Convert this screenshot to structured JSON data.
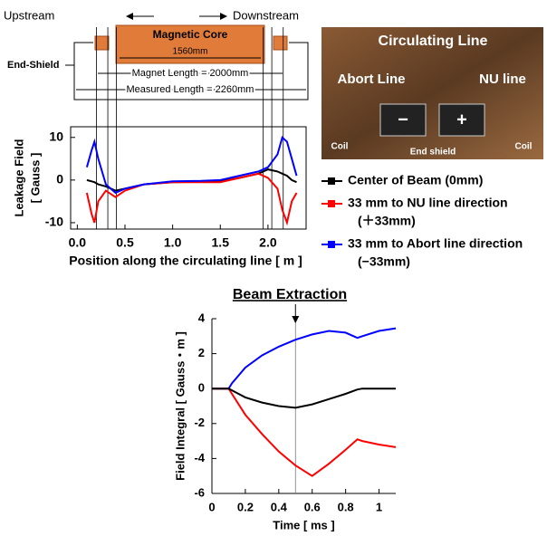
{
  "diagram": {
    "upstream": "Upstream",
    "downstream": "Downstream",
    "core": "Magnetic Core",
    "core_length": "1560mm",
    "end_shield": "End-Shield",
    "magnet_length": "Magnet Length = 2000mm",
    "measured_length": "Measured Length = 2260mm"
  },
  "photo": {
    "circulating": "Circulating Line",
    "abort": "Abort Line",
    "nu": "NU line",
    "coil_left": "Coil",
    "coil_right": "Coil",
    "end_shield": "End shield",
    "minus": "−",
    "plus": "+"
  },
  "chart_data": [
    {
      "type": "line",
      "xlabel": "Position along the circulating line  [ m ]",
      "ylabel": [
        "Leakage Field",
        "[ Gauss ]"
      ],
      "x": [
        0.1,
        0.15,
        0.18,
        0.22,
        0.3,
        0.4,
        0.5,
        0.7,
        1.0,
        1.3,
        1.5,
        1.7,
        1.9,
        2.0,
        2.1,
        2.15,
        2.2,
        2.25,
        2.3
      ],
      "series": [
        {
          "name": [
            "Center of Beam (0mm)"
          ],
          "color": "#000000",
          "values": [
            0,
            -0.3,
            -0.5,
            -1,
            -1.5,
            -2.5,
            -2,
            -1,
            -0.5,
            -0.4,
            -0.3,
            0.5,
            1.5,
            2.5,
            2,
            1.5,
            1,
            0,
            -0.5
          ]
        },
        {
          "name": [
            "33 mm to NU line direction",
            "(＋33mm)"
          ],
          "color": "#ff0000",
          "values": [
            -3,
            -8,
            -10,
            -5,
            -2.5,
            -4,
            -2.5,
            -1,
            -0.5,
            -0.5,
            -0.5,
            0.5,
            1.5,
            0.5,
            -2,
            -7,
            -10,
            -5,
            -3
          ]
        },
        {
          "name": [
            "33 mm to Abort line direction",
            "(−33mm)"
          ],
          "color": "#0000ff",
          "values": [
            3,
            7,
            9,
            5,
            -1,
            -3,
            -2,
            -1,
            -0.3,
            -0.2,
            0,
            1,
            2,
            3,
            6,
            10,
            9,
            5,
            1
          ]
        }
      ],
      "vlines": [
        0.2,
        0.32,
        0.41,
        1.95,
        2.04,
        2.16
      ],
      "xlim": [
        -0.07,
        2.4
      ],
      "xticks": [
        {
          "value": 0,
          "label": "0.0"
        },
        0.5,
        {
          "value": 1,
          "label": "1.0"
        },
        1.5,
        {
          "value": 2,
          "label": "2.0"
        }
      ],
      "ylim": [
        -11.5,
        12.5
      ],
      "yticks": [
        -10,
        0,
        10
      ]
    },
    {
      "type": "line",
      "title": "Beam Extraction",
      "xlabel": "Time [ ms ]",
      "ylabel": "Field Integral [ Gauss・m ]",
      "x": [
        0,
        0.1,
        0.12,
        0.2,
        0.3,
        0.4,
        0.5,
        0.6,
        0.7,
        0.8,
        0.87,
        0.9,
        1.0,
        1.1
      ],
      "series": [
        {
          "color": "#0000ff",
          "values": [
            0,
            0,
            0.3,
            1.2,
            1.9,
            2.4,
            2.8,
            3.1,
            3.3,
            3.2,
            2.9,
            3.0,
            3.3,
            3.45
          ]
        },
        {
          "color": "#ff0000",
          "values": [
            0,
            0,
            -0.3,
            -1.5,
            -2.6,
            -3.6,
            -4.4,
            -5.0,
            -4.3,
            -3.5,
            -2.9,
            -3.0,
            -3.2,
            -3.35
          ]
        },
        {
          "color": "#000000",
          "values": [
            0,
            0,
            -0.1,
            -0.5,
            -0.8,
            -1.0,
            -1.1,
            -0.9,
            -0.6,
            -0.3,
            -0.05,
            0,
            0,
            0
          ]
        }
      ],
      "vline": 0.5,
      "xlim": [
        0,
        1.1
      ],
      "xticks": [
        0,
        0.2,
        0.4,
        0.6,
        0.8,
        1
      ],
      "ylim": [
        -6,
        4
      ],
      "yticks": [
        -6,
        -4,
        -2,
        0,
        2,
        4
      ]
    }
  ]
}
